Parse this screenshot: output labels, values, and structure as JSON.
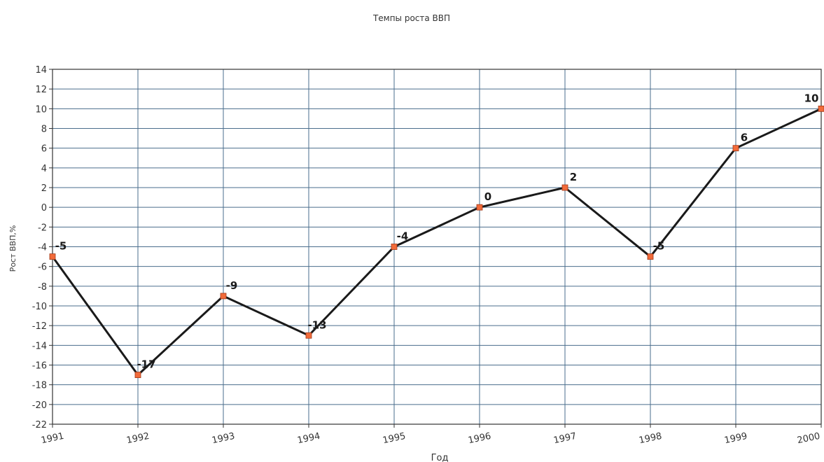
{
  "chart_data": {
    "type": "line",
    "title": "Темпы роста ВВП",
    "xlabel": "Год",
    "ylabel": "Рост ВВП,%",
    "x": [
      "1991",
      "1992",
      "1993",
      "1994",
      "1995",
      "1996",
      "1997",
      "1998",
      "1999",
      "2000"
    ],
    "series": [
      {
        "values": [
          -5,
          -17,
          -9,
          -13,
          -4,
          0,
          2,
          -5,
          6,
          10
        ]
      }
    ],
    "data_labels": [
      "-5",
      "-17",
      "-9",
      "-13",
      "-4",
      "0",
      "2",
      "-5",
      "6",
      "10"
    ],
    "yticks": [
      "14",
      "12",
      "10",
      "8",
      "6",
      "4",
      "2",
      "0",
      "-2",
      "-4",
      "-6",
      "-8",
      "-10",
      "-12",
      "-14",
      "-16",
      "-18",
      "-20",
      "-22"
    ],
    "ylim": [
      -22,
      14
    ],
    "grid": true,
    "colors": {
      "line": "#1a1a1a",
      "marker": "#f26b3a",
      "grid": "#4a6d8c"
    }
  }
}
